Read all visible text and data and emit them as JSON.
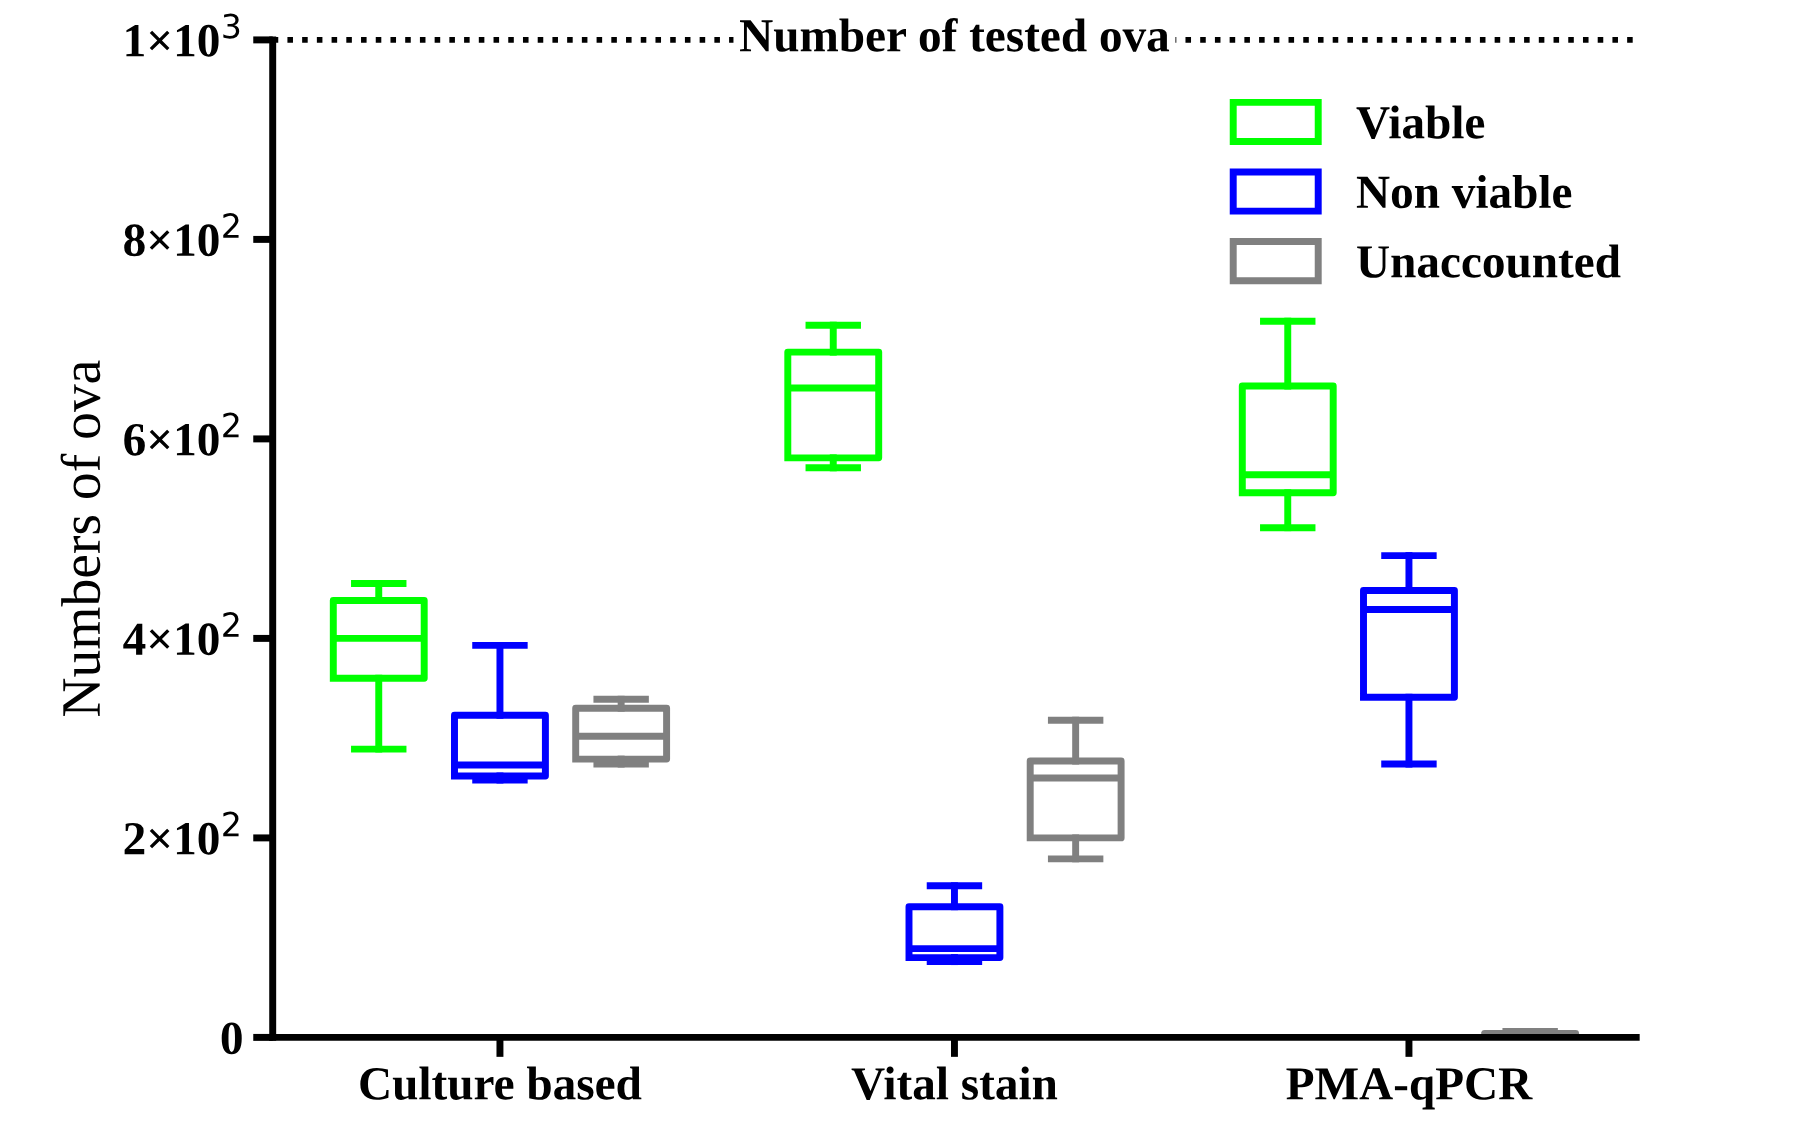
{
  "chart_data": {
    "type": "box",
    "ylabel": "Numbers of ova",
    "categories": [
      "Culture based",
      "Vital stain",
      "PMA-qPCR"
    ],
    "series": [
      {
        "name": "Viable",
        "color": "#00ff00",
        "boxes": [
          {
            "low": 289,
            "q1": 360,
            "median": 400,
            "q3": 438,
            "high": 455
          },
          {
            "low": 571,
            "q1": 581,
            "median": 651,
            "q3": 687,
            "high": 714
          },
          {
            "low": 511,
            "q1": 546,
            "median": 564,
            "q3": 653,
            "high": 718
          }
        ]
      },
      {
        "name": "Non viable",
        "color": "#0000ff",
        "boxes": [
          {
            "low": 258,
            "q1": 262,
            "median": 273,
            "q3": 323,
            "high": 393
          },
          {
            "low": 76,
            "q1": 80,
            "median": 89,
            "q3": 131,
            "high": 152
          },
          {
            "low": 274,
            "q1": 341,
            "median": 429,
            "q3": 448,
            "high": 483
          }
        ]
      },
      {
        "name": "Unaccounted",
        "color": "#808080",
        "boxes": [
          {
            "low": 274,
            "q1": 279,
            "median": 302,
            "q3": 330,
            "high": 339
          },
          {
            "low": 179,
            "q1": 200,
            "median": 260,
            "q3": 277,
            "high": 318
          },
          {
            "low": 0,
            "q1": 2,
            "median": 3,
            "q3": 4,
            "high": 6
          }
        ]
      }
    ],
    "ylim": [
      0,
      1000
    ],
    "yticks": [
      0,
      {
        "value": 200,
        "label": "2×10$^{2}$"
      },
      {
        "value": 400,
        "label": "4×10$^{2}$"
      },
      {
        "value": 600,
        "label": "6×10$^{2}$"
      },
      {
        "value": 800,
        "label": "8×10$^{2}$"
      },
      {
        "value": 1000,
        "label": "1×10$^{3}$"
      }
    ],
    "ref_lines": [
      {
        "axis": "y",
        "value": 1000,
        "label": "Number of tested ova",
        "line_style": "dotted",
        "color": "#000000"
      }
    ],
    "legend": "top right",
    "grid": false
  }
}
